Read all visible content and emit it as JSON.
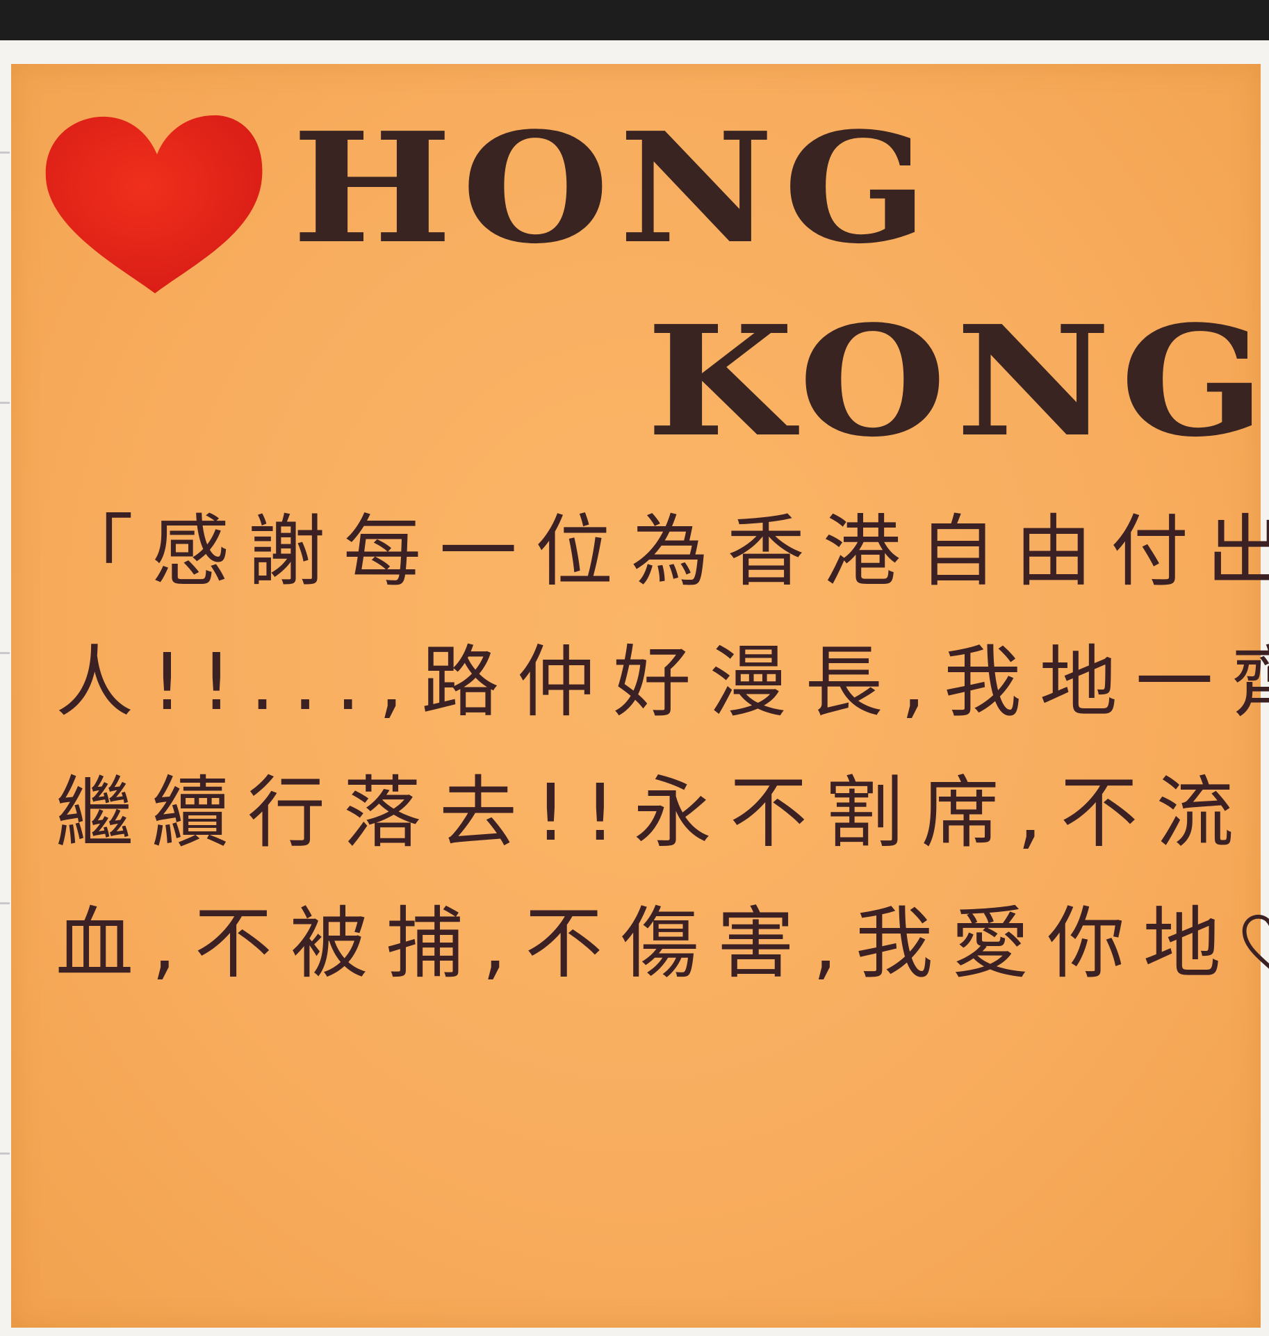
{
  "note": {
    "title_line1": "HONG",
    "title_line2": "KONG",
    "message": {
      "line1": "「感謝每一位為香港自由付出",
      "line2": "人!!...,路仲好漫長,我地一齊",
      "line3": "繼續行落去!!永不割席,不流",
      "line4_a": "血,不被捕,不傷害,我愛你地",
      "line4_b": "」"
    },
    "icons": [
      "red-heart-icon",
      "small-heart-icon"
    ],
    "colors": {
      "note": "#f8ad5e",
      "ink": "#3b2124",
      "heart": "#e8231a"
    }
  }
}
